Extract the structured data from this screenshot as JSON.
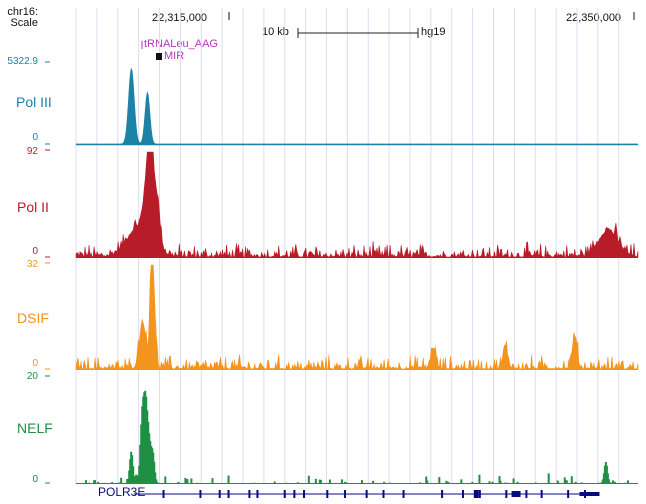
{
  "header": {
    "chrom_label": "chr16:",
    "scale_label": "Scale",
    "pos_left": "22,315,000",
    "pos_right": "22,350,000",
    "scalebar_label": "10 kb",
    "assembly": "hg19"
  },
  "annotations": {
    "trna_label": "tRNALeu_AAG",
    "mir_label": "MIR",
    "color": "#bb33bb"
  },
  "gene": {
    "name": "POLR3E",
    "color": "#0a0a80",
    "exons_kb": [
      10.9,
      15.5,
      17.9,
      19.0,
      21.6,
      22.6,
      26.0,
      27.2,
      28.4,
      31.3,
      33.5,
      36.2,
      38.3,
      40.8,
      45.6,
      48.2,
      50.3,
      53.6,
      56.1,
      58.0,
      61.3,
      63.4
    ],
    "thick_exons_kb": [
      49.8,
      54.5
    ],
    "start_kb": 7.2,
    "end_kb": 65.2
  },
  "chart_data": {
    "type": "area",
    "x_unit": "kb",
    "xlim": [
      0,
      70
    ],
    "tracks": [
      {
        "name": "Pol III",
        "color": "#1b82a8",
        "ymax_label": "5322.9",
        "ymin_label": "0",
        "ymax": 5322.9,
        "peaks": [
          {
            "x": 6.9,
            "height": 0.95,
            "width": 0.35
          },
          {
            "x": 8.9,
            "height": 0.65,
            "width": 0.3
          }
        ],
        "noise": 0.0
      },
      {
        "name": "Pol II",
        "color": "#b81c28",
        "ymax_label": "92",
        "ymin_label": "0",
        "ymax": 92,
        "peaks": [
          {
            "x": 8.0,
            "height": 0.3,
            "width": 1.5
          },
          {
            "x": 8.9,
            "height": 0.55,
            "width": 0.4
          },
          {
            "x": 9.3,
            "height": 1.0,
            "width": 0.25
          },
          {
            "x": 10.0,
            "height": 0.5,
            "width": 0.4
          },
          {
            "x": 66.3,
            "height": 0.25,
            "width": 1.2
          }
        ],
        "noise": 0.1
      },
      {
        "name": "DSIF",
        "color": "#f2941e",
        "ymax_label": "32",
        "ymin_label": "0",
        "ymax": 32,
        "peaks": [
          {
            "x": 8.3,
            "height": 0.45,
            "width": 0.4
          },
          {
            "x": 9.4,
            "height": 1.0,
            "width": 0.2
          },
          {
            "x": 9.7,
            "height": 0.55,
            "width": 0.25
          },
          {
            "x": 44.5,
            "height": 0.2,
            "width": 0.3
          },
          {
            "x": 53.5,
            "height": 0.2,
            "width": 0.3
          },
          {
            "x": 62.1,
            "height": 0.3,
            "width": 0.3
          }
        ],
        "noise": 0.1
      },
      {
        "name": "NELF",
        "color": "#1f8f44",
        "ymax_label": "20",
        "ymin_label": "0",
        "ymax": 20,
        "peaks": [
          {
            "x": 6.9,
            "height": 0.3,
            "width": 0.2
          },
          {
            "x": 8.3,
            "height": 0.7,
            "width": 0.25
          },
          {
            "x": 8.7,
            "height": 0.55,
            "width": 0.2
          },
          {
            "x": 9.1,
            "height": 0.4,
            "width": 0.25
          },
          {
            "x": 9.6,
            "height": 0.25,
            "width": 0.2
          },
          {
            "x": 66.0,
            "height": 0.2,
            "width": 0.2
          }
        ],
        "noise": 0.07
      }
    ]
  }
}
